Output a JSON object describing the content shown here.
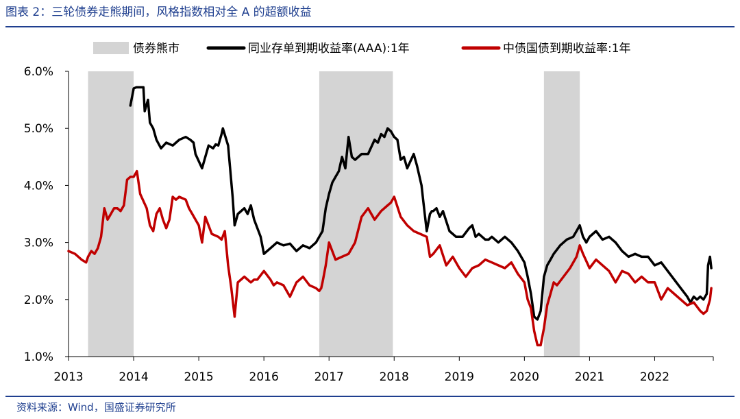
{
  "figure": {
    "title": "图表 2：三轮债券走熊期间，风格指数相对全 A 的超额收益",
    "source": "资料来源：Wind，国盛证券研究所"
  },
  "chart_data": {
    "type": "line",
    "title": "三轮债券走熊期间，风格指数相对全 A 的超额收益",
    "xlabel": "",
    "ylabel": "",
    "xlim": [
      2013.0,
      2022.9
    ],
    "ylim": [
      1.0,
      6.0
    ],
    "x_ticks": [
      2013,
      2014,
      2015,
      2016,
      2017,
      2018,
      2019,
      2020,
      2021,
      2022
    ],
    "y_ticks": [
      {
        "value": 1.0,
        "label": "1.0%"
      },
      {
        "value": 2.0,
        "label": "2.0%"
      },
      {
        "value": 3.0,
        "label": "3.0%"
      },
      {
        "value": 4.0,
        "label": "4.0%"
      },
      {
        "value": 5.0,
        "label": "5.0%"
      },
      {
        "value": 6.0,
        "label": "6.0%"
      }
    ],
    "grid": false,
    "legend_position": "top",
    "shaded_regions": {
      "name": "债券熊市",
      "color": "#d4d4d4",
      "periods": [
        [
          2013.3,
          2014.0
        ],
        [
          2016.85,
          2017.98
        ],
        [
          2020.3,
          2020.85
        ]
      ]
    },
    "series": [
      {
        "name": "同业存单到期收益率(AAA):1年",
        "color": "#000000",
        "x": [
          2013.95,
          2014.0,
          2014.04,
          2014.15,
          2014.17,
          2014.22,
          2014.25,
          2014.3,
          2014.35,
          2014.42,
          2014.5,
          2014.6,
          2014.7,
          2014.8,
          2014.87,
          2014.92,
          2014.95,
          2015.05,
          2015.15,
          2015.22,
          2015.26,
          2015.3,
          2015.35,
          2015.37,
          2015.45,
          2015.52,
          2015.55,
          2015.6,
          2015.7,
          2015.75,
          2015.8,
          2015.85,
          2015.95,
          2016.0,
          2016.1,
          2016.2,
          2016.3,
          2016.4,
          2016.5,
          2016.6,
          2016.7,
          2016.8,
          2016.85,
          2016.9,
          2016.95,
          2017.0,
          2017.05,
          2017.1,
          2017.15,
          2017.2,
          2017.25,
          2017.3,
          2017.35,
          2017.4,
          2017.45,
          2017.5,
          2017.6,
          2017.7,
          2017.75,
          2017.8,
          2017.85,
          2017.9,
          2017.95,
          2018.0,
          2018.05,
          2018.1,
          2018.15,
          2018.2,
          2018.3,
          2018.35,
          2018.42,
          2018.45,
          2018.5,
          2018.55,
          2018.58,
          2018.6,
          2018.65,
          2018.7,
          2018.75,
          2018.85,
          2018.95,
          2019.05,
          2019.15,
          2019.2,
          2019.25,
          2019.3,
          2019.35,
          2019.4,
          2019.45,
          2019.5,
          2019.6,
          2019.7,
          2019.8,
          2019.9,
          2020.0,
          2020.05,
          2020.1,
          2020.15,
          2020.2,
          2020.25,
          2020.3,
          2020.35,
          2020.4,
          2020.45,
          2020.55,
          2020.65,
          2020.75,
          2020.8,
          2020.85,
          2020.9,
          2020.95,
          2021.0,
          2021.1,
          2021.2,
          2021.3,
          2021.4,
          2021.5,
          2021.6,
          2021.7,
          2021.8,
          2021.9,
          2022.0,
          2022.1,
          2022.2,
          2022.3,
          2022.4,
          2022.5,
          2022.55,
          2022.6,
          2022.65,
          2022.7,
          2022.75,
          2022.8,
          2022.82,
          2022.85,
          2022.87
        ],
        "values": [
          5.4,
          5.7,
          5.72,
          5.72,
          5.3,
          5.5,
          5.1,
          5.0,
          4.8,
          4.65,
          4.75,
          4.7,
          4.8,
          4.85,
          4.8,
          4.75,
          4.55,
          4.3,
          4.7,
          4.65,
          4.72,
          4.7,
          4.9,
          5.0,
          4.7,
          3.8,
          3.3,
          3.5,
          3.6,
          3.5,
          3.65,
          3.4,
          3.1,
          2.8,
          2.9,
          3.0,
          2.95,
          2.98,
          2.85,
          2.95,
          2.9,
          3.0,
          3.1,
          3.2,
          3.6,
          3.85,
          4.05,
          4.15,
          4.25,
          4.5,
          4.3,
          4.85,
          4.5,
          4.45,
          4.5,
          4.55,
          4.55,
          4.8,
          4.75,
          4.9,
          4.85,
          5.0,
          4.95,
          4.85,
          4.8,
          4.45,
          4.5,
          4.3,
          4.55,
          4.35,
          4.0,
          3.7,
          3.2,
          3.5,
          3.55,
          3.55,
          3.6,
          3.45,
          3.55,
          3.2,
          3.1,
          3.1,
          3.25,
          3.3,
          3.1,
          3.15,
          3.1,
          3.05,
          3.05,
          3.1,
          3.0,
          3.1,
          3.0,
          2.85,
          2.65,
          2.4,
          2.1,
          1.7,
          1.65,
          1.8,
          2.4,
          2.6,
          2.7,
          2.8,
          2.95,
          3.05,
          3.1,
          3.2,
          3.3,
          3.1,
          3.0,
          3.1,
          3.2,
          3.05,
          3.1,
          3.0,
          2.85,
          2.75,
          2.8,
          2.75,
          2.75,
          2.6,
          2.65,
          2.5,
          2.35,
          2.2,
          2.05,
          1.95,
          2.05,
          2.0,
          2.05,
          2.0,
          2.1,
          2.6,
          2.75,
          2.55
        ]
      },
      {
        "name": "中债国债到期收益率:1年",
        "color": "#c00000",
        "x": [
          2013.0,
          2013.1,
          2013.2,
          2013.27,
          2013.3,
          2013.35,
          2013.4,
          2013.45,
          2013.5,
          2013.55,
          2013.6,
          2013.65,
          2013.7,
          2013.75,
          2013.8,
          2013.85,
          2013.9,
          2013.95,
          2014.0,
          2014.05,
          2014.1,
          2014.2,
          2014.25,
          2014.3,
          2014.35,
          2014.4,
          2014.45,
          2014.5,
          2014.55,
          2014.6,
          2014.65,
          2014.7,
          2014.8,
          2014.85,
          2014.9,
          2015.0,
          2015.05,
          2015.1,
          2015.2,
          2015.3,
          2015.35,
          2015.4,
          2015.45,
          2015.5,
          2015.55,
          2015.6,
          2015.7,
          2015.8,
          2015.85,
          2015.9,
          2016.0,
          2016.1,
          2016.15,
          2016.2,
          2016.3,
          2016.4,
          2016.5,
          2016.6,
          2016.7,
          2016.8,
          2016.85,
          2016.88,
          2016.9,
          2016.95,
          2017.0,
          2017.1,
          2017.2,
          2017.3,
          2017.4,
          2017.5,
          2017.6,
          2017.7,
          2017.8,
          2017.9,
          2017.95,
          2018.0,
          2018.1,
          2018.2,
          2018.3,
          2018.4,
          2018.5,
          2018.55,
          2018.6,
          2018.7,
          2018.8,
          2018.9,
          2019.0,
          2019.1,
          2019.2,
          2019.3,
          2019.4,
          2019.5,
          2019.6,
          2019.7,
          2019.8,
          2019.9,
          2020.0,
          2020.05,
          2020.1,
          2020.15,
          2020.2,
          2020.25,
          2020.3,
          2020.35,
          2020.4,
          2020.45,
          2020.5,
          2020.6,
          2020.7,
          2020.8,
          2020.85,
          2020.9,
          2021.0,
          2021.1,
          2021.2,
          2021.3,
          2021.4,
          2021.5,
          2021.6,
          2021.7,
          2021.8,
          2021.9,
          2022.0,
          2022.1,
          2022.2,
          2022.3,
          2022.4,
          2022.5,
          2022.6,
          2022.7,
          2022.75,
          2022.8,
          2022.85,
          2022.87
        ],
        "values": [
          2.85,
          2.8,
          2.7,
          2.65,
          2.75,
          2.85,
          2.8,
          2.9,
          3.1,
          3.6,
          3.4,
          3.5,
          3.6,
          3.6,
          3.55,
          3.65,
          4.1,
          4.15,
          4.15,
          4.25,
          3.85,
          3.6,
          3.3,
          3.2,
          3.5,
          3.6,
          3.4,
          3.25,
          3.4,
          3.8,
          3.75,
          3.8,
          3.75,
          3.6,
          3.5,
          3.3,
          3.0,
          3.45,
          3.15,
          3.1,
          3.05,
          3.2,
          2.6,
          2.2,
          1.7,
          2.3,
          2.4,
          2.3,
          2.35,
          2.35,
          2.5,
          2.35,
          2.25,
          2.3,
          2.25,
          2.05,
          2.3,
          2.4,
          2.25,
          2.2,
          2.15,
          2.2,
          2.3,
          2.6,
          3.0,
          2.7,
          2.75,
          2.8,
          3.0,
          3.45,
          3.6,
          3.4,
          3.55,
          3.65,
          3.7,
          3.8,
          3.45,
          3.3,
          3.2,
          3.15,
          3.1,
          2.75,
          2.8,
          2.95,
          2.6,
          2.75,
          2.55,
          2.4,
          2.55,
          2.6,
          2.7,
          2.65,
          2.6,
          2.55,
          2.65,
          2.45,
          2.3,
          2.0,
          1.85,
          1.45,
          1.2,
          1.2,
          1.5,
          1.9,
          2.1,
          2.3,
          2.25,
          2.4,
          2.55,
          2.75,
          2.95,
          2.8,
          2.55,
          2.7,
          2.6,
          2.5,
          2.3,
          2.5,
          2.45,
          2.3,
          2.4,
          2.3,
          2.3,
          2.0,
          2.2,
          2.1,
          2.0,
          1.9,
          1.95,
          1.8,
          1.75,
          1.8,
          2.0,
          2.2
        ]
      }
    ]
  }
}
